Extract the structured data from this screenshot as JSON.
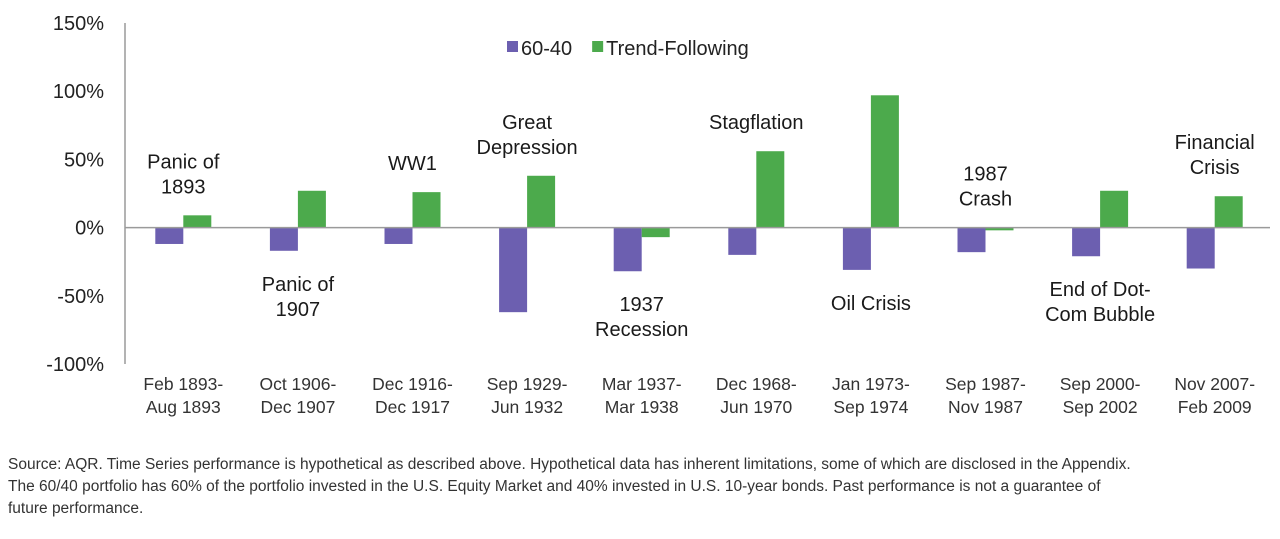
{
  "chart_data": {
    "type": "bar",
    "categories": [
      [
        "Feb 1893-",
        "Aug 1893"
      ],
      [
        "Oct 1906-",
        "Dec 1907"
      ],
      [
        "Dec 1916-",
        "Dec 1917"
      ],
      [
        "Sep 1929-",
        "Jun 1932"
      ],
      [
        "Mar 1937-",
        "Mar 1938"
      ],
      [
        "Dec 1968-",
        "Jun 1970"
      ],
      [
        "Jan 1973-",
        "Sep 1974"
      ],
      [
        "Sep 1987-",
        "Nov 1987"
      ],
      [
        "Sep 2000-",
        "Sep 2002"
      ],
      [
        "Nov 2007-",
        "Feb 2009"
      ]
    ],
    "series": [
      {
        "name": "60-40",
        "color": "#6c5fb0",
        "values": [
          -12,
          -17,
          -12,
          -62,
          -32,
          -20,
          -31,
          -18,
          -21,
          -30
        ]
      },
      {
        "name": "Trend-Following",
        "color": "#4caa4c",
        "values": [
          9,
          27,
          26,
          38,
          -7,
          56,
          97,
          -2,
          27,
          23
        ]
      }
    ],
    "ylim": [
      -100,
      150
    ],
    "yticks": [
      -100,
      -50,
      0,
      50,
      100,
      150
    ],
    "ytick_labels": [
      "-100%",
      "-50%",
      "0%",
      "50%",
      "100%",
      "150%"
    ],
    "legend_position": "top-center",
    "grid": false,
    "annotations": [
      {
        "category": 0,
        "placement": "above",
        "lines": [
          "Panic of",
          "1893"
        ]
      },
      {
        "category": 1,
        "placement": "below",
        "lines": [
          "Panic of",
          "1907"
        ]
      },
      {
        "category": 2,
        "placement": "above",
        "lines": [
          "WW1"
        ]
      },
      {
        "category": 3,
        "placement": "above",
        "lines": [
          "Great",
          "Depression"
        ]
      },
      {
        "category": 4,
        "placement": "below",
        "lines": [
          "1937",
          "Recession"
        ]
      },
      {
        "category": 5,
        "placement": "above",
        "lines": [
          "Stagflation"
        ]
      },
      {
        "category": 6,
        "placement": "below",
        "lines": [
          "Oil Crisis"
        ]
      },
      {
        "category": 7,
        "placement": "above",
        "lines": [
          "1987",
          "Crash"
        ]
      },
      {
        "category": 8,
        "placement": "below",
        "lines": [
          "End of Dot-",
          "Com Bubble"
        ]
      },
      {
        "category": 9,
        "placement": "above",
        "lines": [
          "Financial",
          "Crisis"
        ]
      }
    ]
  },
  "source_note": {
    "line1": "Source: AQR. Time Series performance is hypothetical as described above. Hypothetical data has inherent limitations, some of which are disclosed in the Appendix.",
    "line2": "The 60/40 portfolio has 60% of the portfolio invested in the U.S. Equity Market and 40% invested in U.S. 10-year bonds. Past performance is not a guarantee of",
    "line3": "future performance."
  }
}
